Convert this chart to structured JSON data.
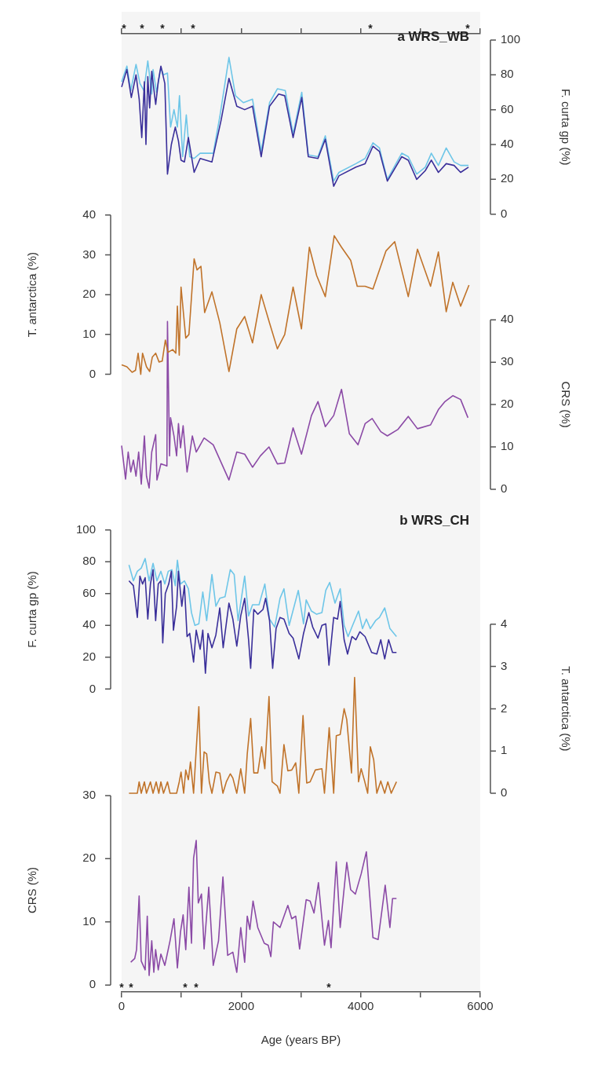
{
  "chart_data": [
    {
      "type": "line",
      "title": "a WRS_WB",
      "ylabel": "F. curta gp (%)",
      "xlim": [
        0,
        6000
      ],
      "xticks": [
        {
          "value": 0,
          "label": null
        },
        {
          "value": 1000,
          "label": null
        },
        {
          "value": 2000,
          "label": null
        },
        {
          "value": 3000,
          "label": null
        },
        {
          "value": 4000,
          "label": null
        },
        {
          "value": 5000,
          "label": null
        },
        {
          "value": 6000,
          "label": null
        }
      ],
      "ylim": [
        0,
        100
      ],
      "yticks": [
        0,
        20,
        40,
        60,
        80,
        100
      ],
      "tick_labels": "y",
      "annotations": [
        "*",
        "*",
        "*",
        "*",
        "*",
        "*"
      ],
      "series": [
        {
          "color": "#6ec6e8",
          "x": [
            0,
            88,
            153,
            241,
            307,
            372,
            438,
            504,
            526,
            583,
            657,
            701,
            767,
            819,
            876,
            933,
            968,
            1021,
            1082,
            1139,
            1213,
            1314,
            1533,
            1643,
            1796,
            1905,
            2037,
            2190,
            2335,
            2475,
            2606,
            2738,
            2869,
            3014,
            3123,
            3285,
            3408,
            3548,
            3636,
            3920,
            4074,
            4205,
            4314,
            4446,
            4687,
            4796,
            4937,
            5081,
            5182,
            5300,
            5431,
            5563,
            5672,
            5804
          ],
          "values": [
            76,
            85,
            71,
            86,
            75,
            71,
            88,
            69,
            83,
            70,
            84,
            80,
            81,
            50,
            60,
            50,
            68,
            33,
            57,
            33,
            32,
            35,
            35,
            56,
            90,
            68,
            64,
            66,
            36,
            64,
            72,
            71,
            46,
            70,
            34,
            33,
            45,
            19,
            24,
            29,
            32,
            41,
            38,
            20,
            35,
            33,
            23,
            27,
            35,
            28,
            38,
            30,
            28,
            28
          ]
        },
        {
          "color": "#3a2f9a",
          "x": [
            0,
            88,
            162,
            241,
            294,
            337,
            381,
            407,
            438,
            469,
            504,
            570,
            613,
            657,
            723,
            767,
            832,
            898,
            951,
            994,
            1051,
            1117,
            1213,
            1314,
            1511,
            1665,
            1796,
            1927,
            2059,
            2190,
            2335,
            2475,
            2628,
            2729,
            2869,
            3014,
            3123,
            3285,
            3408,
            3548,
            3636,
            3920,
            4074,
            4205,
            4314,
            4446,
            4687,
            4796,
            4937,
            5081,
            5182,
            5300,
            5431,
            5563,
            5672,
            5804
          ],
          "values": [
            73,
            83,
            67,
            80,
            66,
            44,
            76,
            40,
            79,
            61,
            82,
            63,
            76,
            85,
            75,
            23,
            40,
            50,
            42,
            31,
            30,
            44,
            24,
            32,
            30,
            54,
            78,
            62,
            60,
            62,
            33,
            62,
            69,
            68,
            44,
            67,
            33,
            32,
            43,
            16,
            22,
            27,
            29,
            39,
            36,
            19,
            33,
            31,
            20,
            25,
            31,
            24,
            29,
            28,
            24,
            27
          ]
        }
      ]
    },
    {
      "type": "line",
      "ylabel": "T. antarctica (%)",
      "xlim": [
        0,
        6000
      ],
      "ylim": [
        0,
        40
      ],
      "yticks": [
        0,
        10,
        20,
        30,
        40
      ],
      "tick_labels": "y",
      "series": [
        {
          "color": "#c0732a",
          "x": [
            0,
            88,
            175,
            232,
            276,
            320,
            350,
            416,
            469,
            513,
            570,
            626,
            679,
            732,
            775,
            854,
            907,
            933,
            964,
            994,
            1073,
            1126,
            1213,
            1262,
            1327,
            1389,
            1511,
            1643,
            1796,
            1927,
            2059,
            2190,
            2335,
            2475,
            2606,
            2729,
            2869,
            3009,
            3141,
            3263,
            3408,
            3557,
            3679,
            3833,
            3942,
            4074,
            4205,
            4424,
            4569,
            4796,
            4950,
            5169,
            5300,
            5431,
            5541,
            5672,
            5812
          ],
          "values": [
            2.4,
            1.9,
            0.5,
            1,
            5.3,
            0,
            5.3,
            1.9,
            0.7,
            4.3,
            5.3,
            3.1,
            3.3,
            8.6,
            5.5,
            6.2,
            5.3,
            17.1,
            4.8,
            21.9,
            9.1,
            10,
            29,
            26.2,
            27.1,
            15.5,
            20.7,
            12.9,
            0.7,
            11.4,
            14.5,
            7.9,
            20,
            12.9,
            6.4,
            10,
            21.9,
            11.4,
            31.9,
            24.8,
            19.5,
            34.8,
            31.9,
            28.6,
            22.1,
            22.1,
            21.4,
            31,
            33.3,
            19.5,
            31.4,
            22.1,
            30.7,
            15.7,
            23.1,
            17.1,
            22.4
          ]
        }
      ]
    },
    {
      "type": "line",
      "ylabel": "CRS (%)",
      "xlim": [
        0,
        6000
      ],
      "ylim": [
        0,
        40
      ],
      "yticks": [
        0,
        10,
        20,
        30,
        40
      ],
      "tick_labels": "y",
      "series": [
        {
          "color": "#8b4aa6",
          "x": [
            0,
            66,
            110,
            153,
            197,
            241,
            285,
            329,
            381,
            416,
            460,
            504,
            570,
            591,
            657,
            723,
            758,
            767,
            802,
            819,
            876,
            920,
            951,
            986,
            1029,
            1095,
            1183,
            1248,
            1380,
            1533,
            1796,
            1927,
            2059,
            2190,
            2322,
            2466,
            2606,
            2729,
            2869,
            3009,
            3176,
            3285,
            3408,
            3548,
            3679,
            3811,
            3955,
            4074,
            4192,
            4336,
            4446,
            4621,
            4796,
            4950,
            5169,
            5300,
            5410,
            5541,
            5672,
            5795
          ],
          "values": [
            10.3,
            2.4,
            8.8,
            4.1,
            6.9,
            3.1,
            8.8,
            1.2,
            12.6,
            3.1,
            0.3,
            8.8,
            12.9,
            2.2,
            6,
            5.7,
            5.5,
            39.6,
            7.9,
            16.9,
            12.6,
            7.9,
            15.5,
            9.8,
            15,
            4.1,
            12.6,
            8.8,
            12.1,
            10.5,
            2.2,
            8.8,
            8.3,
            5.2,
            7.9,
            10,
            6,
            6.2,
            14.5,
            8.3,
            17.4,
            20.7,
            14.8,
            17.4,
            23.6,
            13.1,
            10.5,
            15.5,
            16.7,
            13.6,
            12.6,
            14.1,
            17.2,
            14.3,
            15.2,
            18.8,
            20.7,
            22.1,
            21.2,
            16.9
          ]
        }
      ]
    },
    {
      "type": "line",
      "title": "b WRS_CH",
      "ylabel": "F. curta gp (%)",
      "xlim": [
        0,
        6000
      ],
      "ylim": [
        0,
        100
      ],
      "yticks": [
        0,
        20,
        40,
        60,
        80,
        100
      ],
      "tick_labels": "y",
      "series": [
        {
          "color": "#6ec6e8",
          "x": [
            123,
            197,
            263,
            328,
            394,
            460,
            526,
            591,
            657,
            723,
            780,
            841,
            898,
            933,
            985,
            1051,
            1117,
            1169,
            1226,
            1292,
            1358,
            1423,
            1511,
            1577,
            1642,
            1730,
            1818,
            1883,
            1949,
            2059,
            2124,
            2190,
            2299,
            2396,
            2475,
            2562,
            2650,
            2716,
            2803,
            2956,
            3044,
            3088,
            3176,
            3263,
            3351,
            3416,
            3482,
            3570,
            3657,
            3723,
            3789,
            3854,
            3964,
            4030,
            4095,
            4161,
            4249,
            4314,
            4402,
            4489,
            4599
          ],
          "values": [
            78,
            68,
            74,
            76,
            82,
            68,
            79,
            68,
            74,
            66,
            74,
            75,
            65,
            81,
            66,
            68,
            63,
            48,
            40,
            41,
            61,
            43,
            72,
            52,
            57,
            58,
            75,
            72,
            43,
            71,
            46,
            53,
            53,
            66,
            44,
            39,
            57,
            63,
            40,
            62,
            41,
            56,
            49,
            47,
            48,
            62,
            67,
            54,
            63,
            40,
            33,
            39,
            49,
            38,
            44,
            38,
            43,
            45,
            51,
            38,
            33
          ]
        },
        {
          "color": "#3a2f9a",
          "x": [
            123,
            197,
            263,
            306,
            350,
            394,
            438,
            482,
            526,
            569,
            613,
            657,
            688,
            731,
            788,
            832,
            867,
            920,
            950,
            1007,
            1051,
            1095,
            1139,
            1204,
            1248,
            1314,
            1358,
            1402,
            1445,
            1511,
            1577,
            1642,
            1699,
            1796,
            1861,
            1927,
            1993,
            2059,
            2124,
            2159,
            2212,
            2278,
            2365,
            2409,
            2475,
            2527,
            2584,
            2650,
            2716,
            2803,
            2869,
            2965,
            3044,
            3132,
            3197,
            3285,
            3351,
            3416,
            3469,
            3548,
            3613,
            3657,
            3723,
            3780,
            3854,
            3920,
            3986,
            4073,
            4183,
            4270,
            4336,
            4402,
            4467,
            4533,
            4599
          ],
          "values": [
            68,
            65,
            45,
            71,
            66,
            70,
            44,
            66,
            75,
            43,
            66,
            68,
            29,
            60,
            66,
            74,
            37,
            52,
            74,
            52,
            65,
            33,
            35,
            17,
            37,
            25,
            37,
            10,
            35,
            26,
            34,
            51,
            26,
            54,
            44,
            27,
            46,
            57,
            31,
            13,
            50,
            47,
            50,
            57,
            43,
            13,
            38,
            45,
            44,
            35,
            32,
            19,
            35,
            48,
            39,
            32,
            40,
            41,
            15,
            45,
            44,
            55,
            31,
            22,
            33,
            31,
            36,
            33,
            23,
            22,
            31,
            19,
            31,
            23,
            23
          ]
        }
      ]
    },
    {
      "type": "line",
      "ylabel": "T. antarctica (%)",
      "xlim": [
        0,
        6000
      ],
      "ylim": [
        0,
        4
      ],
      "yticks": [
        0,
        1,
        2,
        3,
        4
      ],
      "tick_labels": "y",
      "series": [
        {
          "color": "#c0732a",
          "x": [
            123,
            263,
            293,
            328,
            381,
            416,
            482,
            526,
            578,
            622,
            657,
            701,
            767,
            810,
            920,
            964,
            994,
            1038,
            1073,
            1117,
            1152,
            1204,
            1248,
            1292,
            1336,
            1380,
            1423,
            1467,
            1511,
            1577,
            1642,
            1695,
            1752,
            1818,
            1861,
            1927,
            1993,
            2059,
            2102,
            2159,
            2212,
            2278,
            2343,
            2396,
            2466,
            2518,
            2606,
            2650,
            2716,
            2781,
            2847,
            2913,
            2965,
            3035,
            3097,
            3154,
            3241,
            3351,
            3394,
            3473,
            3548,
            3592,
            3657,
            3723,
            3767,
            3846,
            3898,
            3964,
            4008,
            4065,
            4117,
            4161,
            4218,
            4270,
            4336,
            4402,
            4454,
            4511,
            4599
          ],
          "values": [
            0,
            0,
            0.27,
            0,
            0.27,
            0,
            0.27,
            0,
            0.27,
            0,
            0.27,
            0,
            0.27,
            0,
            0,
            0.27,
            0.5,
            0,
            0.55,
            0.32,
            0.74,
            0,
            1.03,
            2.05,
            0,
            0.98,
            0.93,
            0.27,
            0,
            0.5,
            0.48,
            0,
            0.27,
            0.46,
            0.36,
            0,
            0.58,
            0,
            0.93,
            1.77,
            0.48,
            0.48,
            1.1,
            0.58,
            2.29,
            0.27,
            0.17,
            0,
            1.15,
            0.53,
            0.55,
            0.72,
            0,
            1.84,
            0.24,
            0.27,
            0.55,
            0.58,
            0,
            1.55,
            0,
            1.36,
            1.39,
            2,
            1.74,
            0.48,
            2.74,
            0.27,
            0.58,
            0.29,
            0,
            1.1,
            0.79,
            0,
            0.29,
            0,
            0.27,
            0,
            0.27
          ]
        }
      ]
    },
    {
      "type": "line",
      "ylabel": "CRS (%)",
      "xlabel": "Age (years BP)",
      "xlim": [
        0,
        6000
      ],
      "xticks": [
        0,
        {
          "value": 1000,
          "label": null
        },
        2000,
        {
          "value": 3000,
          "label": null
        },
        4000,
        {
          "value": 5000,
          "label": null
        },
        6000
      ],
      "ylim": [
        0,
        30
      ],
      "yticks": [
        0,
        10,
        20,
        30
      ],
      "annotations": [
        "*",
        "*",
        "*",
        "*",
        "*"
      ],
      "series": [
        {
          "color": "#8b4aa6",
          "x": [
            153,
            219,
            250,
            293,
            328,
            394,
            429,
            460,
            504,
            539,
            569,
            613,
            657,
            723,
            810,
            876,
            933,
            985,
            1029,
            1073,
            1126,
            1169,
            1204,
            1248,
            1283,
            1336,
            1380,
            1458,
            1533,
            1621,
            1695,
            1774,
            1861,
            1927,
            1993,
            2059,
            2102,
            2146,
            2199,
            2278,
            2387,
            2453,
            2497,
            2540,
            2650,
            2781,
            2847,
            2913,
            2978,
            3088,
            3154,
            3219,
            3293,
            3394,
            3460,
            3504,
            3592,
            3657,
            3767,
            3832,
            3911,
            4008,
            4095,
            4205,
            4292,
            4410,
            4489,
            4533,
            4599
          ],
          "values": [
            3.6,
            4.2,
            5.6,
            14.1,
            3.8,
            2.4,
            10.9,
            1.5,
            7,
            2,
            5.6,
            2.4,
            4.9,
            3.1,
            7,
            10.5,
            2.7,
            8.4,
            11.1,
            5.6,
            15.5,
            6.6,
            20.1,
            22.9,
            13,
            14.4,
            5.7,
            15.5,
            3.1,
            7,
            17.1,
            4.7,
            5.2,
            2,
            9.1,
            3.6,
            10.9,
            8.8,
            13.3,
            9.1,
            6.6,
            6.3,
            4.5,
            10,
            9.1,
            12.6,
            10.5,
            10.9,
            5.7,
            13.5,
            13.3,
            11.4,
            16.2,
            6.3,
            10.2,
            5.9,
            19.5,
            9.1,
            19.4,
            15.1,
            14.4,
            17.6,
            21.1,
            7.5,
            7.2,
            15.8,
            9.1,
            13.7,
            13.7
          ]
        }
      ]
    }
  ]
}
